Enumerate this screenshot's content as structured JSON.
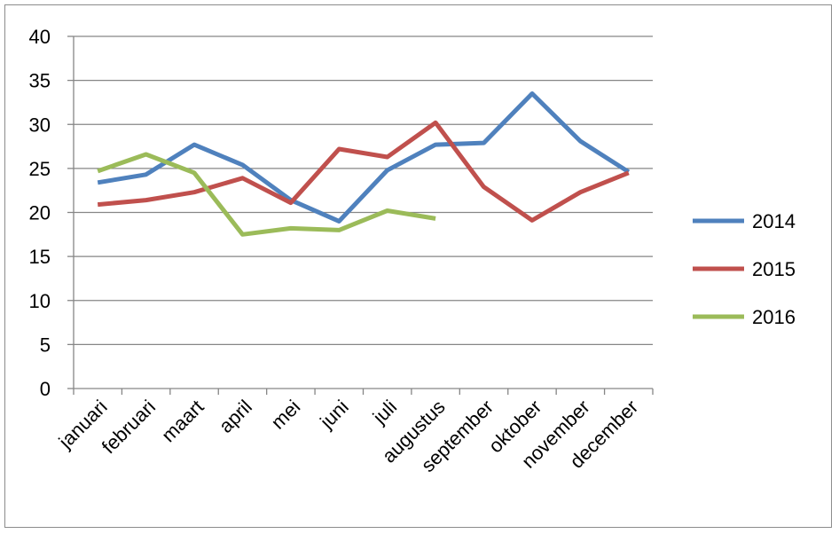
{
  "chart_data": {
    "type": "line",
    "title": "",
    "xlabel": "",
    "ylabel": "",
    "categories": [
      "januari",
      "februari",
      "maart",
      "april",
      "mei",
      "juni",
      "juli",
      "augustus",
      "september",
      "oktober",
      "november",
      "december"
    ],
    "ylim": [
      0,
      40
    ],
    "yticks": [
      0,
      5,
      10,
      15,
      20,
      25,
      30,
      35,
      40
    ],
    "grid": true,
    "legend_position": "right",
    "series": [
      {
        "name": "2014",
        "color": "#4f81bd",
        "values": [
          23.4,
          24.3,
          27.7,
          25.4,
          21.4,
          19.0,
          24.8,
          27.7,
          27.9,
          33.5,
          28.1,
          24.6
        ]
      },
      {
        "name": "2015",
        "color": "#c0504d",
        "values": [
          20.9,
          21.4,
          22.3,
          23.9,
          21.1,
          27.2,
          26.3,
          30.2,
          22.9,
          19.1,
          22.3,
          24.5
        ]
      },
      {
        "name": "2016",
        "color": "#9bbb59",
        "values": [
          24.7,
          26.6,
          24.5,
          17.5,
          18.2,
          18.0,
          20.2,
          19.3,
          null,
          null,
          null,
          null
        ]
      }
    ]
  }
}
